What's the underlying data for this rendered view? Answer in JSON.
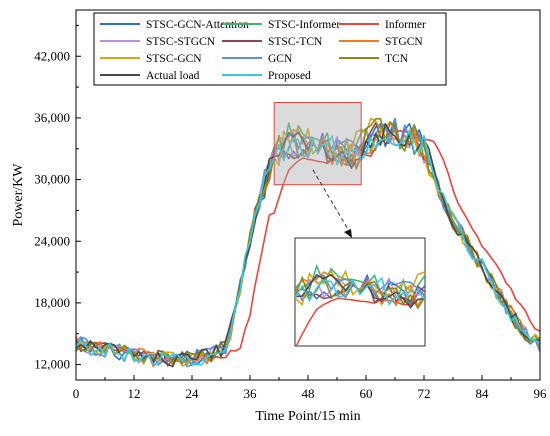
{
  "chart_data": {
    "type": "line",
    "xlabel": "Time Point/15 min",
    "ylabel": "Power/KW",
    "xlim": [
      0,
      96
    ],
    "ylim": [
      10500,
      46500
    ],
    "xticks": [
      0,
      12,
      24,
      36,
      48,
      60,
      72,
      84,
      96
    ],
    "yticks": [
      12000,
      18000,
      24000,
      30000,
      36000,
      42000
    ],
    "ytick_labels": [
      "12,000",
      "18,000",
      "24,000",
      "30,000",
      "36,000",
      "42,000"
    ],
    "grid": false,
    "legend_position": "top",
    "legend_columns": 3,
    "inset": {
      "source_region": {
        "x": [
          41,
          59
        ],
        "y": [
          29500,
          37500
        ]
      },
      "description": "zoomed view of peak region"
    },
    "series": [
      {
        "name": "STSC-GCN-Attention",
        "color": "#2e6fcf"
      },
      {
        "name": "STSC-Informer",
        "color": "#3cb371"
      },
      {
        "name": "Informer",
        "color": "#e8453c"
      },
      {
        "name": "STSC-STGCN",
        "color": "#c08ee8"
      },
      {
        "name": "STSC-TCN",
        "color": "#8b4a4a"
      },
      {
        "name": "STGCN",
        "color": "#f07a1e"
      },
      {
        "name": "STSC-GCN",
        "color": "#d4a615"
      },
      {
        "name": "GCN",
        "color": "#5b8fd6"
      },
      {
        "name": "TCN",
        "color": "#8a8a14"
      },
      {
        "name": "Actual load",
        "color": "#4a4a4a"
      },
      {
        "name": "Proposed",
        "color": "#33ccdd"
      }
    ],
    "profile": {
      "x": [
        0,
        4,
        8,
        12,
        16,
        20,
        24,
        28,
        31,
        33,
        35,
        37,
        39,
        41,
        44,
        48,
        52,
        56,
        58,
        60,
        62,
        66,
        70,
        72,
        74,
        76,
        78,
        80,
        84,
        88,
        92,
        96
      ],
      "y": [
        14000,
        13600,
        13300,
        13000,
        12600,
        12500,
        12600,
        12900,
        13800,
        17000,
        22000,
        26500,
        29500,
        32500,
        33500,
        33200,
        33000,
        32600,
        32500,
        33500,
        34500,
        34500,
        34000,
        33000,
        30500,
        28000,
        26000,
        24500,
        21500,
        18500,
        15500,
        14000
      ]
    }
  }
}
